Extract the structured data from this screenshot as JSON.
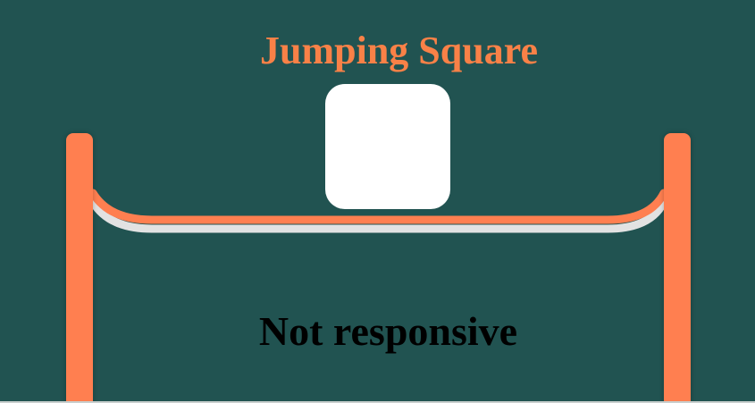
{
  "game": {
    "title": "Jumping Square",
    "status": "Not responsive"
  },
  "colors": {
    "background": "#215351",
    "accent": "#FF7F50",
    "title": "#F98147",
    "square": "#FFFFFF",
    "rope_shadow": "#E2E2E2"
  }
}
